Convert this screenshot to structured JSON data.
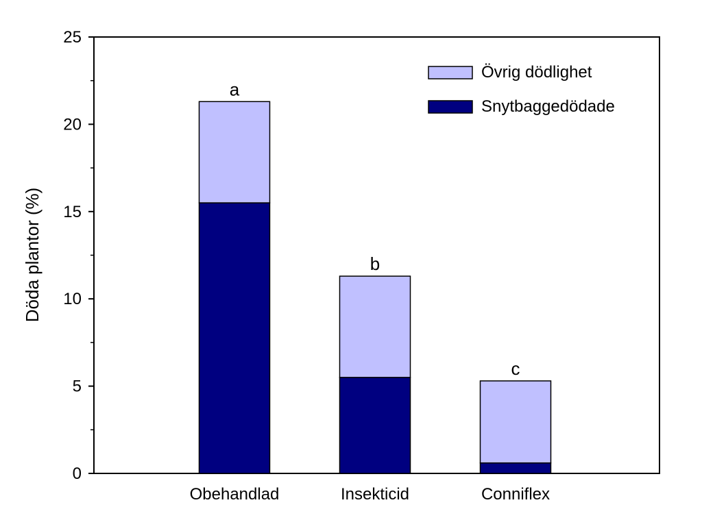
{
  "chart_data": {
    "type": "bar",
    "stacked": true,
    "title": "",
    "xlabel": "",
    "ylabel": "Döda plantor (%)",
    "ylim": [
      0,
      25
    ],
    "yticks": [
      "0",
      "5",
      "10",
      "15",
      "20",
      "25"
    ],
    "grid": false,
    "legend_position": "top-right",
    "categories": [
      "Obehandlad",
      "Insekticid",
      "Conniflex"
    ],
    "significance_labels": [
      "a",
      "b",
      "c"
    ],
    "series": [
      {
        "name": "Snytbaggedödade",
        "color": "#000080",
        "values": [
          15.5,
          5.5,
          0.6
        ]
      },
      {
        "name": "Övrig dödlighet",
        "color": "#c0c0ff",
        "values": [
          5.8,
          5.8,
          4.7
        ]
      }
    ]
  }
}
